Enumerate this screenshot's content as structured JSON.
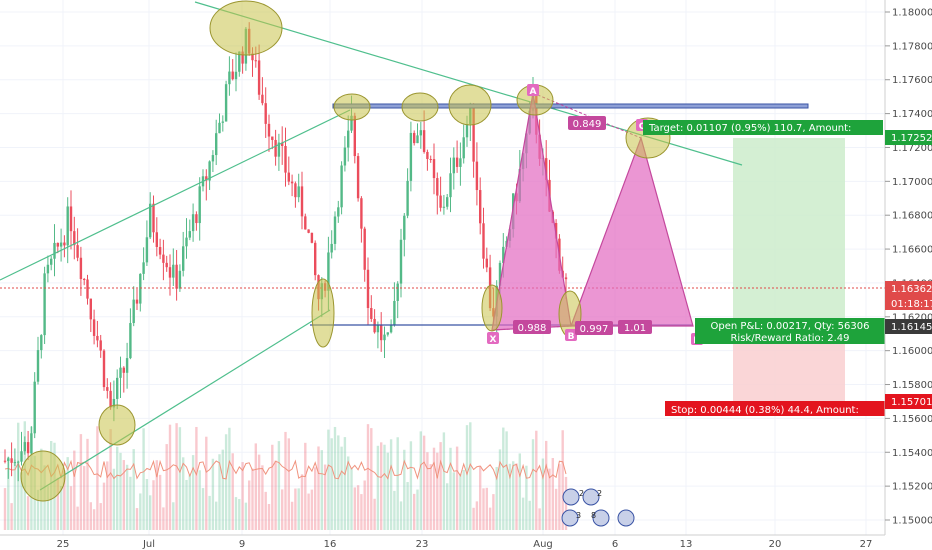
{
  "chart_data": {
    "type": "candlestick",
    "y_ticks": [
      "1.18000",
      "1.17800",
      "1.17600",
      "1.17400",
      "1.17200",
      "1.17000",
      "1.16800",
      "1.16600",
      "1.16400",
      "1.16200",
      "1.16000",
      "1.15800",
      "1.15600",
      "1.15400",
      "1.15200",
      "1.15000"
    ],
    "x_ticks": [
      "25",
      "Jul",
      "9",
      "16",
      "23",
      "Aug",
      "6",
      "13",
      "20",
      "27"
    ],
    "price_tags": {
      "target": "1.17252",
      "current": "1.16362",
      "countdown": "01:18:17",
      "entry": "1.16145",
      "stop": "1.15701"
    },
    "labels": {
      "target": "Target: 0.01107 (0.95%) 110.7, Amount:",
      "open_pnl": "Open P&L: 0.00217, Qty: 56306",
      "risk_reward": "Risk/Reward Ratio: 2.49",
      "stop": "Stop: 0.00444 (0.38%) 44.4, Amount:"
    },
    "pattern": {
      "points": [
        "X",
        "A",
        "B",
        "C",
        "D"
      ],
      "ratios": [
        "0.849",
        "0.988",
        "0.997",
        "1.01"
      ]
    },
    "events": [
      "2",
      "2",
      "3",
      "8"
    ],
    "colors": {
      "up": "#53b987",
      "down": "#eb4d5c",
      "pattern": "#e36ac0",
      "highlight": "#c8c24a",
      "trend": "#4fbf8d",
      "support": "#3953a4",
      "target_zone": "#cdeccb",
      "stop_zone": "#f9cfd0"
    }
  }
}
